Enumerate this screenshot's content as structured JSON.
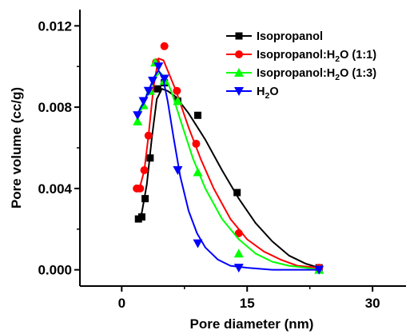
{
  "chart_data": {
    "type": "scatter",
    "xlabel": "Pore diameter (nm)",
    "ylabel": "Pore volume (cc/g)",
    "xlim": [
      -5,
      34
    ],
    "ylim": [
      -0.0008,
      0.0128
    ],
    "x_ticks": [
      0,
      15,
      30
    ],
    "x_tick_labels": [
      "0",
      "15",
      "30"
    ],
    "y_ticks": [
      0.0,
      0.004,
      0.008,
      0.012
    ],
    "y_tick_labels": [
      "0.000",
      "0.004",
      "0.008",
      "0.012"
    ],
    "legend_position": "top-right",
    "grid": false,
    "series": [
      {
        "name": "Isopropanol",
        "color": "#000000",
        "marker": "square",
        "points": [
          [
            2.0,
            0.0025
          ],
          [
            2.4,
            0.0026
          ],
          [
            2.8,
            0.0035
          ],
          [
            3.4,
            0.0055
          ],
          [
            4.3,
            0.0089
          ],
          [
            5.1,
            0.0092
          ],
          [
            6.7,
            0.0083
          ],
          [
            9.1,
            0.0076
          ],
          [
            13.8,
            0.0038
          ],
          [
            23.6,
            0.0001
          ]
        ],
        "curve": [
          [
            1.8,
            0.0024
          ],
          [
            2.4,
            0.0028
          ],
          [
            3.0,
            0.0042
          ],
          [
            3.6,
            0.0065
          ],
          [
            4.2,
            0.0084
          ],
          [
            4.8,
            0.0089
          ],
          [
            5.5,
            0.0088
          ],
          [
            6.5,
            0.0085
          ],
          [
            8.0,
            0.0077
          ],
          [
            10.0,
            0.0064
          ],
          [
            12.0,
            0.0049
          ],
          [
            14.0,
            0.0035
          ],
          [
            16.0,
            0.0023
          ],
          [
            18.0,
            0.0014
          ],
          [
            20.0,
            0.0007
          ],
          [
            22.0,
            0.0003
          ],
          [
            23.6,
            0.0001
          ]
        ]
      },
      {
        "name": "Isopropanol:H₂O (1:1)",
        "color": "#ff0000",
        "marker": "circle",
        "points": [
          [
            1.8,
            0.004
          ],
          [
            2.2,
            0.004
          ],
          [
            2.7,
            0.0049
          ],
          [
            3.2,
            0.0066
          ],
          [
            4.1,
            0.0102
          ],
          [
            5.1,
            0.011
          ],
          [
            6.6,
            0.0088
          ],
          [
            8.9,
            0.0062
          ],
          [
            14.0,
            0.0018
          ],
          [
            23.6,
            0.0001
          ]
        ],
        "curve": [
          [
            1.8,
            0.0039
          ],
          [
            2.2,
            0.0041
          ],
          [
            2.7,
            0.0049
          ],
          [
            3.2,
            0.0066
          ],
          [
            3.8,
            0.009
          ],
          [
            4.4,
            0.0104
          ],
          [
            5.0,
            0.0103
          ],
          [
            5.6,
            0.0097
          ],
          [
            6.5,
            0.0088
          ],
          [
            8.0,
            0.007
          ],
          [
            9.5,
            0.0054
          ],
          [
            11.0,
            0.004
          ],
          [
            13.0,
            0.0025
          ],
          [
            15.0,
            0.0015
          ],
          [
            17.0,
            0.0009
          ],
          [
            19.0,
            0.0005
          ],
          [
            21.0,
            0.0002
          ],
          [
            23.6,
            0.0001
          ]
        ]
      },
      {
        "name": "Isopropanol:H₂O (1:3)",
        "color": "#00ff00",
        "marker": "triangle-up",
        "points": [
          [
            1.9,
            0.0073
          ],
          [
            2.6,
            0.0081
          ],
          [
            3.4,
            0.0088
          ],
          [
            4.0,
            0.0102
          ],
          [
            5.1,
            0.0093
          ],
          [
            6.7,
            0.0083
          ],
          [
            9.1,
            0.0048
          ],
          [
            14.0,
            0.0008
          ],
          [
            23.6,
            0.0
          ]
        ],
        "curve": [
          [
            1.8,
            0.0074
          ],
          [
            2.6,
            0.0081
          ],
          [
            3.3,
            0.0088
          ],
          [
            4.0,
            0.0095
          ],
          [
            4.6,
            0.0097
          ],
          [
            5.3,
            0.0094
          ],
          [
            6.0,
            0.0087
          ],
          [
            7.0,
            0.0074
          ],
          [
            8.5,
            0.0055
          ],
          [
            10.0,
            0.004
          ],
          [
            12.0,
            0.0025
          ],
          [
            14.0,
            0.0015
          ],
          [
            16.0,
            0.0008
          ],
          [
            18.0,
            0.0004
          ],
          [
            20.0,
            0.0002
          ],
          [
            22.0,
            0.0001
          ],
          [
            23.6,
            0.0
          ]
        ]
      },
      {
        "name": "H₂O",
        "color": "#0000ff",
        "marker": "triangle-down",
        "points": [
          [
            1.9,
            0.0076
          ],
          [
            2.6,
            0.0083
          ],
          [
            3.2,
            0.0088
          ],
          [
            3.7,
            0.0093
          ],
          [
            4.4,
            0.01
          ],
          [
            5.1,
            0.0094
          ],
          [
            6.7,
            0.0049
          ],
          [
            9.1,
            0.0013
          ],
          [
            14.0,
            0.0001
          ],
          [
            23.6,
            0.0
          ]
        ],
        "curve": [
          [
            1.8,
            0.0076
          ],
          [
            2.6,
            0.0082
          ],
          [
            3.3,
            0.0089
          ],
          [
            3.9,
            0.0095
          ],
          [
            4.4,
            0.0098
          ],
          [
            4.9,
            0.0095
          ],
          [
            5.5,
            0.0083
          ],
          [
            6.2,
            0.0065
          ],
          [
            7.0,
            0.0046
          ],
          [
            8.0,
            0.0029
          ],
          [
            9.0,
            0.0018
          ],
          [
            10.0,
            0.0011
          ],
          [
            11.5,
            0.0005
          ],
          [
            13.0,
            0.0002
          ],
          [
            15.0,
            0.0001
          ],
          [
            18.0,
            0.0
          ],
          [
            23.6,
            0.0
          ]
        ]
      }
    ]
  }
}
